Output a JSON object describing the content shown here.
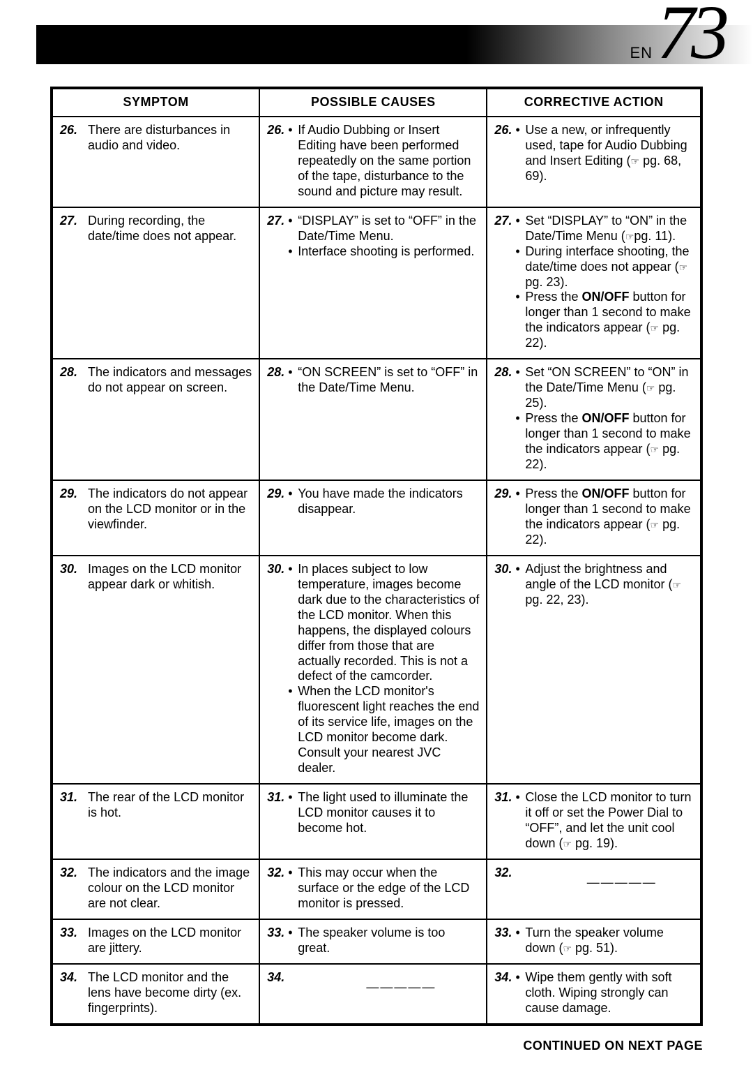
{
  "page": {
    "en_label": "EN",
    "number": "73"
  },
  "headers": {
    "symptom": "SYMPTOM",
    "causes": "POSSIBLE CAUSES",
    "action": "CORRECTIVE ACTION"
  },
  "footer": "CONTINUED ON NEXT PAGE",
  "colors": {
    "border": "#000000",
    "background": "#ffffff",
    "gradient_from": "#000000",
    "gradient_to": "#ffffff"
  },
  "rows": [
    {
      "n": "26.",
      "symptom": "There are disturbances in audio and video.",
      "cause_items": [
        "If Audio Dubbing or Insert Editing have been performed repeatedly on the same portion of the tape, disturbance to the sound and picture may result."
      ],
      "action_html": "Use a new, or infrequently used, tape for Audio Dubbing and Insert Editing (☞ pg. 68, 69)."
    },
    {
      "n": "27.",
      "symptom": "During recording, the date/time does not appear.",
      "cause_items": [
        "“DISPLAY” is set to “OFF” in the Date/Time Menu.",
        "Interface shooting is performed."
      ],
      "action_html": "Set “DISPLAY” to “ON” in the Date/Time Menu (☞pg. 11).|During interface shooting, the date/time does not appear (☞ pg. 23).|Press the <b>ON/OFF</b> button for longer than 1 second to make the indicators appear (☞ pg. 22)."
    },
    {
      "n": "28.",
      "symptom": "The indicators and messages do not appear on screen.",
      "cause_items": [
        "“ON SCREEN” is set to “OFF” in the Date/Time Menu."
      ],
      "action_html": "Set “ON SCREEN” to “ON” in the Date/Time Menu (☞ pg. 25).|Press the <b>ON/OFF</b> button for longer than 1 second to make the indicators appear (☞ pg. 22)."
    },
    {
      "n": "29.",
      "symptom": "The indicators do not appear on the LCD monitor or in the viewfinder.",
      "cause_items": [
        "You have made the indicators disappear."
      ],
      "action_html": "Press the <b>ON/OFF</b> button for longer than 1 second to make the indicators appear (☞ pg. 22)."
    },
    {
      "n": "30.",
      "symptom": "Images on the LCD monitor appear dark or whitish.",
      "cause_items": [
        "In places subject to low temperature, images become dark due to the characteristics of the LCD monitor. When this happens, the displayed colours differ from those that are actually recorded. This is not a defect of the camcorder.",
        "When the LCD monitor's fluorescent light reaches the end of its service life, images on the LCD monitor become dark. Consult your nearest JVC dealer."
      ],
      "action_html": "Adjust the brightness and angle of the LCD monitor (☞ pg. 22, 23)."
    },
    {
      "n": "31.",
      "symptom": "The rear of the LCD monitor is hot.",
      "cause_items": [
        "The light used to illuminate the LCD monitor causes it to become hot."
      ],
      "action_html": "Close the LCD monitor to turn it off or set the Power Dial to “OFF”, and let the unit cool down (☞ pg. 19)."
    },
    {
      "n": "32.",
      "symptom": "The indicators and the image colour on the LCD monitor are not clear.",
      "cause_items": [
        "This may occur when the surface or the edge of the LCD monitor is pressed."
      ],
      "action_empty": true
    },
    {
      "n": "33.",
      "symptom": "Images on the LCD monitor are jittery.",
      "cause_items": [
        "The speaker volume is too great."
      ],
      "action_html": "Turn the speaker volume down (☞ pg. 51)."
    },
    {
      "n": "34.",
      "symptom": "The LCD monitor and the lens have become dirty (ex. fingerprints).",
      "cause_empty": true,
      "action_html": "Wipe them gently with soft cloth. Wiping strongly can cause damage."
    }
  ]
}
